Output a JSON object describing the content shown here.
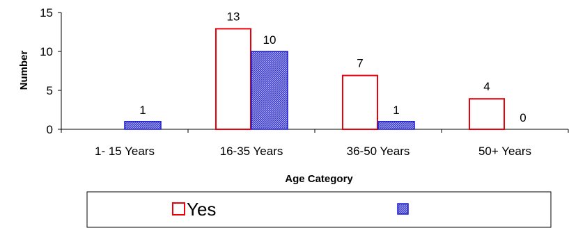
{
  "chart_data": {
    "type": "bar",
    "categories": [
      "1- 15 Years",
      "16-35 Years",
      "36-50 Years",
      "50+ Years"
    ],
    "series": [
      {
        "name": "Yes",
        "values": [
          null,
          13,
          7,
          4
        ],
        "color": "#e8000b",
        "fill": "none"
      },
      {
        "values": [
          1,
          10,
          1,
          0
        ],
        "color": "#1a1ad0",
        "fill": "hatched-blue"
      }
    ],
    "data_labels": [
      [
        "",
        "13",
        "7",
        "4"
      ],
      [
        "1",
        "10",
        "1",
        "0"
      ]
    ],
    "xlabel": "Age Category",
    "ylabel": "Number",
    "ylim": [
      0,
      15
    ],
    "yticks": [
      0,
      5,
      10,
      15
    ],
    "grid": false,
    "legend": {
      "placement": "bottom",
      "entries": [
        "Yes",
        ""
      ]
    }
  }
}
